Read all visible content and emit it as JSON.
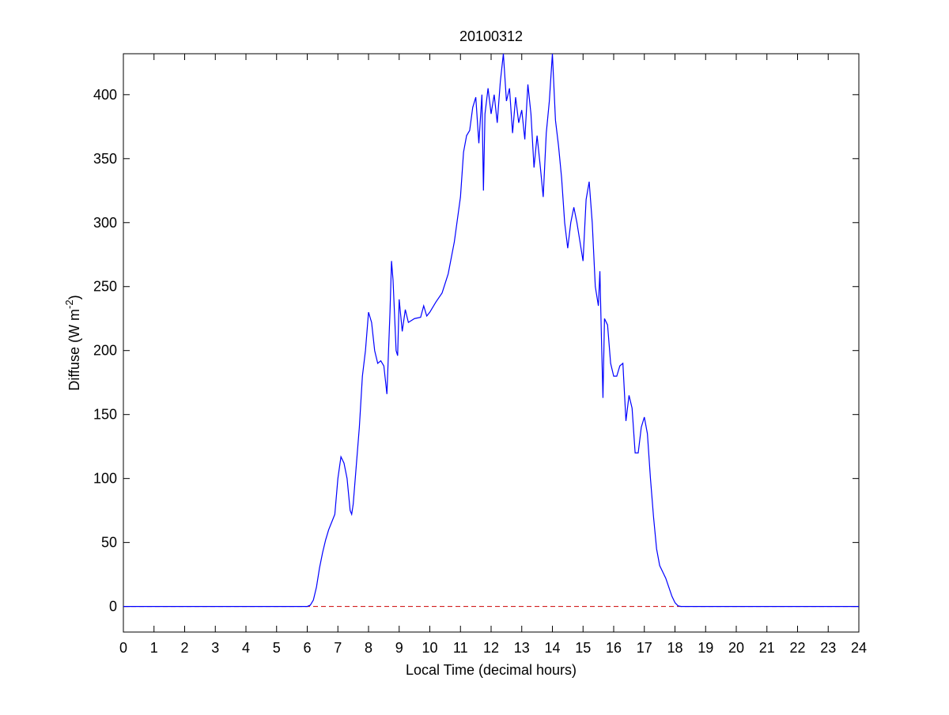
{
  "chart_data": {
    "type": "line",
    "title": "20100312",
    "x_label": "Local Time (decimal hours)",
    "y_label": [
      "Diffuse (W m",
      "-2",
      ")"
    ],
    "xlim": [
      0,
      24
    ],
    "xticks": [
      0,
      1,
      2,
      3,
      4,
      5,
      6,
      7,
      8,
      9,
      10,
      11,
      12,
      13,
      14,
      15,
      16,
      17,
      18,
      19,
      20,
      21,
      22,
      23,
      24
    ],
    "ylim": [
      -20,
      432
    ],
    "yticks": [
      0,
      50,
      100,
      150,
      200,
      250,
      300,
      350,
      400
    ],
    "grid": false,
    "reference_line": {
      "value": 0,
      "color": "#cc0000",
      "style": "dashed"
    },
    "series": [
      {
        "color": "#0000ff",
        "x": [
          0,
          6.0,
          6.1,
          6.2,
          6.3,
          6.4,
          6.5,
          6.6,
          6.7,
          6.8,
          6.9,
          7.0,
          7.1,
          7.2,
          7.3,
          7.4,
          7.45,
          7.5,
          7.6,
          7.7,
          7.8,
          7.9,
          8.0,
          8.1,
          8.2,
          8.3,
          8.4,
          8.5,
          8.6,
          8.7,
          8.75,
          8.8,
          8.9,
          8.95,
          9.0,
          9.1,
          9.2,
          9.3,
          9.5,
          9.7,
          9.8,
          9.9,
          10.0,
          10.2,
          10.4,
          10.6,
          10.8,
          11.0,
          11.1,
          11.2,
          11.3,
          11.4,
          11.5,
          11.6,
          11.7,
          11.75,
          11.8,
          11.9,
          12.0,
          12.1,
          12.2,
          12.3,
          12.4,
          12.5,
          12.6,
          12.7,
          12.8,
          12.9,
          13.0,
          13.1,
          13.2,
          13.3,
          13.4,
          13.5,
          13.6,
          13.7,
          13.8,
          13.9,
          14.0,
          14.1,
          14.2,
          14.3,
          14.4,
          14.5,
          14.6,
          14.7,
          14.8,
          14.9,
          15.0,
          15.1,
          15.2,
          15.3,
          15.4,
          15.5,
          15.55,
          15.6,
          15.65,
          15.7,
          15.8,
          15.9,
          16.0,
          16.1,
          16.2,
          16.3,
          16.4,
          16.5,
          16.6,
          16.7,
          16.8,
          16.9,
          17.0,
          17.1,
          17.2,
          17.3,
          17.4,
          17.5,
          17.6,
          17.7,
          17.8,
          17.9,
          18.0,
          18.1,
          18.2,
          24
        ],
        "values": [
          0,
          0,
          1,
          5,
          15,
          30,
          42,
          52,
          60,
          66,
          72,
          100,
          117,
          112,
          100,
          75,
          72,
          80,
          110,
          140,
          180,
          200,
          230,
          222,
          200,
          190,
          192,
          188,
          166,
          230,
          270,
          255,
          200,
          196,
          240,
          215,
          232,
          222,
          225,
          226,
          235,
          227,
          230,
          238,
          245,
          260,
          285,
          320,
          355,
          368,
          372,
          390,
          398,
          362,
          400,
          325,
          385,
          405,
          385,
          400,
          378,
          410,
          432,
          395,
          405,
          370,
          398,
          378,
          388,
          365,
          408,
          385,
          343,
          368,
          345,
          320,
          370,
          395,
          432,
          380,
          360,
          335,
          300,
          280,
          300,
          312,
          300,
          285,
          270,
          318,
          332,
          300,
          250,
          235,
          262,
          210,
          163,
          225,
          220,
          190,
          180,
          180,
          188,
          190,
          145,
          165,
          155,
          120,
          120,
          140,
          148,
          135,
          100,
          70,
          45,
          32,
          27,
          22,
          15,
          8,
          3,
          0.5,
          0,
          0
        ]
      }
    ]
  }
}
